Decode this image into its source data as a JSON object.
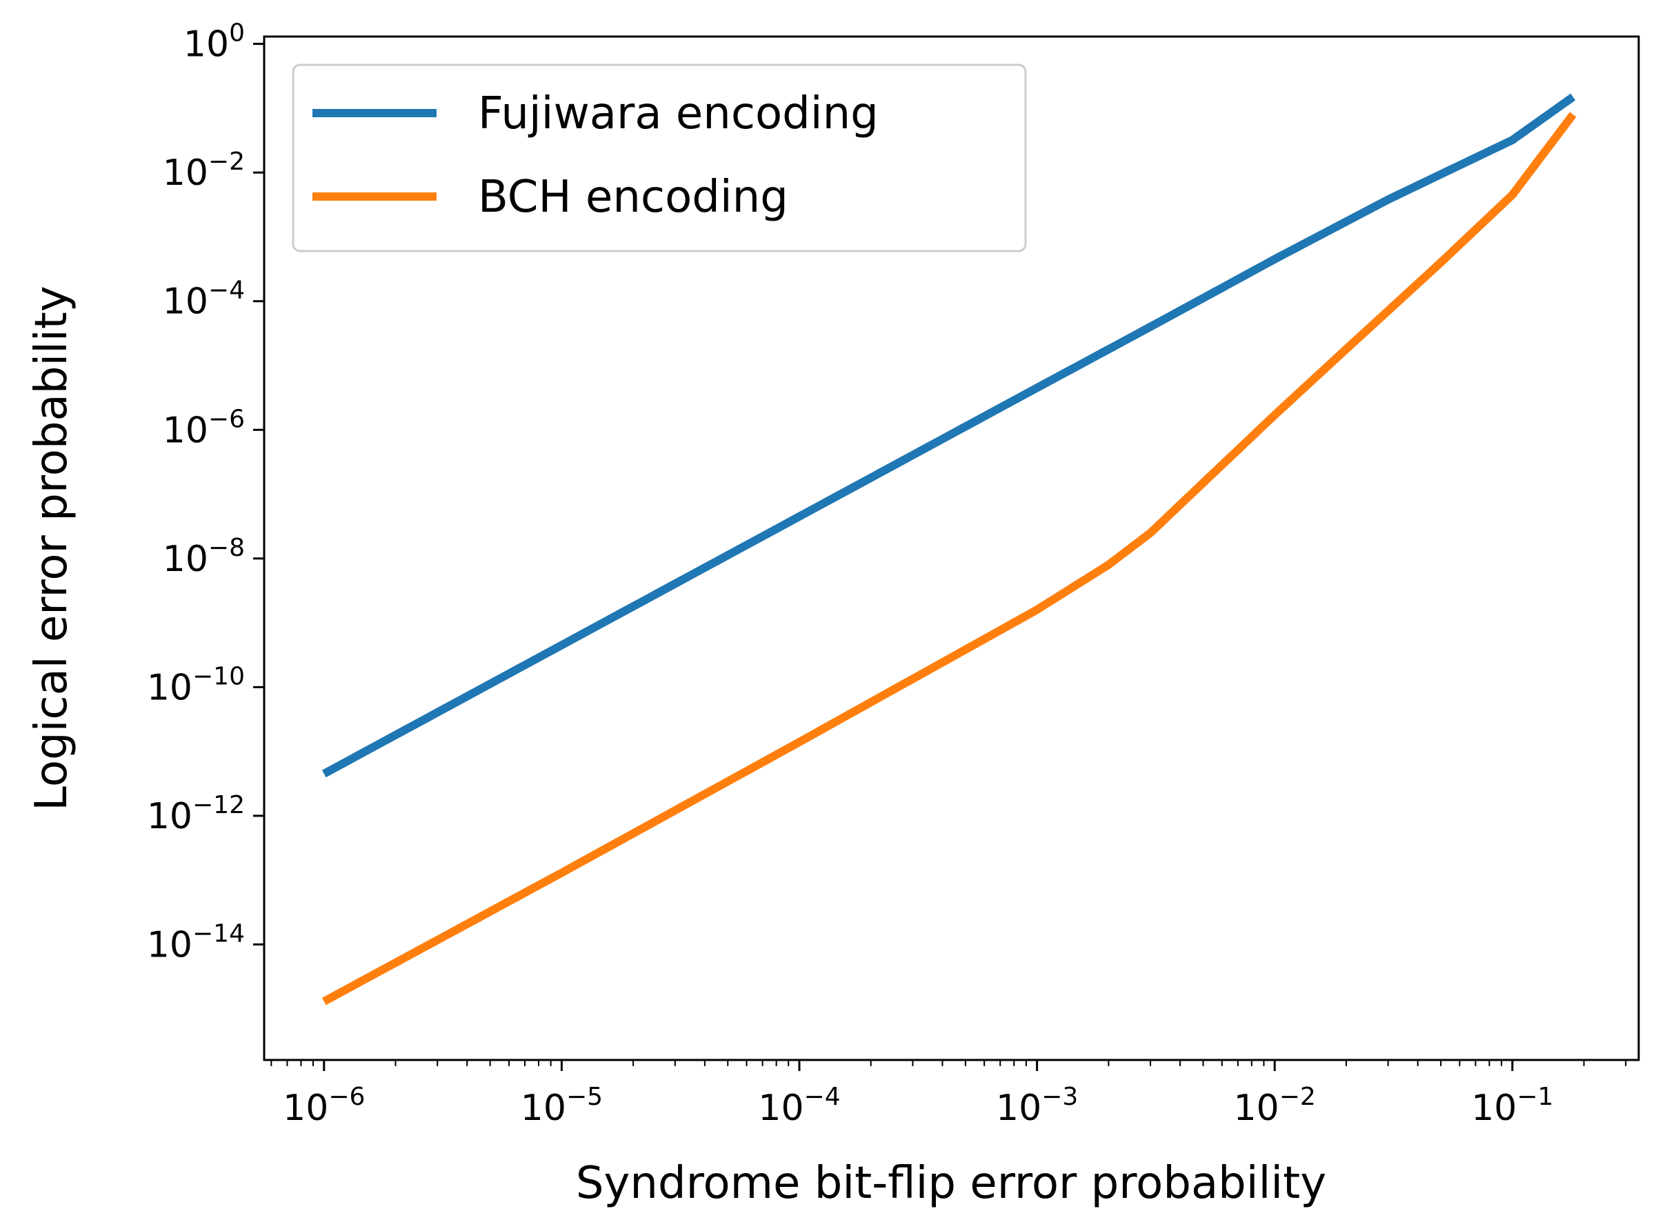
{
  "chart_data": {
    "type": "line",
    "title": "",
    "xlabel": "Syndrome bit-flip error probability",
    "ylabel": "Logical error probability",
    "xscale": "log",
    "yscale": "log",
    "xlim": [
      5.6e-07,
      0.34
    ],
    "ylim": [
      1.6e-16,
      1.3
    ],
    "xticks": [
      {
        "value": 1e-06,
        "base": "10",
        "exp": "−6"
      },
      {
        "value": 1e-05,
        "base": "10",
        "exp": "−5"
      },
      {
        "value": 0.0001,
        "base": "10",
        "exp": "−4"
      },
      {
        "value": 0.001,
        "base": "10",
        "exp": "−3"
      },
      {
        "value": 0.01,
        "base": "10",
        "exp": "−2"
      },
      {
        "value": 0.1,
        "base": "10",
        "exp": "−1"
      }
    ],
    "yticks": [
      {
        "value": 1,
        "base": "10",
        "exp": "0"
      },
      {
        "value": 0.01,
        "base": "10",
        "exp": "−2"
      },
      {
        "value": 0.0001,
        "base": "10",
        "exp": "−4"
      },
      {
        "value": 1e-06,
        "base": "10",
        "exp": "−6"
      },
      {
        "value": 1e-08,
        "base": "10",
        "exp": "−8"
      },
      {
        "value": 1e-10,
        "base": "10",
        "exp": "−10"
      },
      {
        "value": 1e-12,
        "base": "10",
        "exp": "−12"
      },
      {
        "value": 1e-14,
        "base": "10",
        "exp": "−14"
      }
    ],
    "grid": false,
    "legend_position": "top-left",
    "series": [
      {
        "name": "Fujiwara encoding",
        "color": "#1f77b4",
        "x": [
          1e-06,
          1e-05,
          0.0001,
          0.001,
          0.003,
          0.01,
          0.03,
          0.1,
          0.18
        ],
        "y": [
          4.5e-12,
          4.5e-10,
          4.5e-08,
          4.5e-06,
          4e-05,
          0.00045,
          0.0038,
          0.032,
          0.15
        ]
      },
      {
        "name": "BCH encoding",
        "color": "#ff7f0e",
        "x": [
          1e-06,
          1e-05,
          0.0001,
          0.001,
          0.002,
          0.003,
          0.005,
          0.01,
          0.02,
          0.05,
          0.1,
          0.18
        ],
        "y": [
          1.3e-15,
          1.3e-13,
          1.4e-11,
          1.6e-09,
          8e-09,
          2.5e-08,
          1.5e-07,
          1.7e-06,
          1.8e-05,
          0.0004,
          0.0045,
          0.08
        ]
      }
    ]
  }
}
